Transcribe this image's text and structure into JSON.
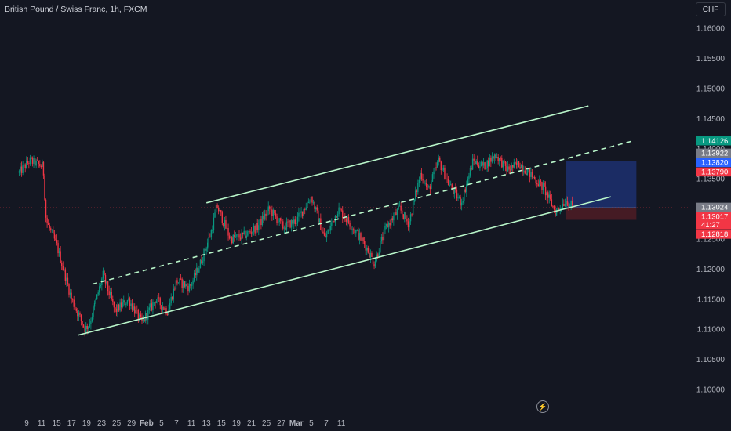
{
  "header": {
    "title": "British Pound / Swiss Franc, 1h, FXCM",
    "currency_button": "CHF"
  },
  "chart_data": {
    "type": "candlestick",
    "title": "British Pound / Swiss Franc, 1h, FXCM",
    "ylim": [
      1.0975,
      1.1625
    ],
    "y_ticks": [
      "1.16000",
      "1.15500",
      "1.15000",
      "1.14500",
      "1.14000",
      "1.13500",
      "1.13000",
      "1.12500",
      "1.12000",
      "1.11500",
      "1.11000",
      "1.10500",
      "1.10000"
    ],
    "x_ticks": [
      "9",
      "11",
      "15",
      "17",
      "19",
      "23",
      "25",
      "29",
      "Feb",
      "5",
      "7",
      "11",
      "13",
      "15",
      "19",
      "21",
      "25",
      "27",
      "Mar",
      "5",
      "7",
      "11"
    ],
    "price_path": [
      [
        -0.5,
        1.136
      ],
      [
        0.2,
        1.138
      ],
      [
        1.1,
        1.137
      ],
      [
        1.3,
        1.128
      ],
      [
        2.0,
        1.124
      ],
      [
        3.0,
        1.115
      ],
      [
        3.9,
        1.11
      ],
      [
        4.2,
        1.111
      ],
      [
        5.1,
        1.119
      ],
      [
        5.9,
        1.113
      ],
      [
        6.8,
        1.115
      ],
      [
        7.7,
        1.111
      ],
      [
        8.6,
        1.115
      ],
      [
        9.4,
        1.113
      ],
      [
        10.0,
        1.118
      ],
      [
        10.9,
        1.117
      ],
      [
        11.6,
        1.121
      ],
      [
        12.3,
        1.126
      ],
      [
        12.7,
        1.1305
      ],
      [
        13.6,
        1.125
      ],
      [
        14.5,
        1.1255
      ],
      [
        15.4,
        1.127
      ],
      [
        16.2,
        1.13
      ],
      [
        17.1,
        1.127
      ],
      [
        18.0,
        1.128
      ],
      [
        19.0,
        1.132
      ],
      [
        19.9,
        1.125
      ],
      [
        20.8,
        1.13
      ],
      [
        21.6,
        1.1275
      ],
      [
        22.6,
        1.124
      ],
      [
        23.2,
        1.121
      ],
      [
        24.0,
        1.127
      ],
      [
        24.9,
        1.13
      ],
      [
        25.5,
        1.1275
      ],
      [
        26.3,
        1.136
      ],
      [
        26.8,
        1.133
      ],
      [
        27.5,
        1.138
      ],
      [
        28.2,
        1.134
      ],
      [
        29.0,
        1.131
      ],
      [
        29.8,
        1.138
      ],
      [
        30.5,
        1.137
      ],
      [
        31.3,
        1.139
      ],
      [
        32.1,
        1.1365
      ],
      [
        32.9,
        1.1375
      ],
      [
        33.7,
        1.1355
      ],
      [
        34.5,
        1.1335
      ],
      [
        35.3,
        1.1295
      ],
      [
        36.0,
        1.1315
      ],
      [
        36.5,
        1.13
      ]
    ],
    "channel": {
      "upper_line": [
        [
          12.0,
          1.131
        ],
        [
          37.5,
          1.1471
        ]
      ],
      "lower_line": [
        [
          3.4,
          1.109
        ],
        [
          39.0,
          1.132
        ]
      ],
      "middle_dashed_line": [
        [
          4.4,
          1.1175
        ],
        [
          40.5,
          1.1413
        ]
      ]
    },
    "position": {
      "type": "long",
      "entry": 1.13017,
      "target": 1.1379,
      "stop": 1.12818,
      "x_range": [
        36.0,
        40.7
      ]
    },
    "current_price_line": 1.13017,
    "price_labels": [
      {
        "value": "1.14126",
        "price": 1.14126,
        "color": "#089981"
      },
      {
        "value": "1.13922",
        "price": 1.13922,
        "color": "#787b86"
      },
      {
        "value": "1.13820",
        "price": 1.1382,
        "color": "#2962ff"
      },
      {
        "value": "1.13790",
        "price": 1.1379,
        "color": "#f23645"
      },
      {
        "value": "1.13024",
        "price": 1.13024,
        "color": "#787b86"
      },
      {
        "value": "1.13017",
        "sub": "41:27",
        "price": 1.13017,
        "color": "#f23645"
      },
      {
        "value": "1.12818",
        "price": 1.12818,
        "color": "#f23645"
      }
    ],
    "colors": {
      "background": "#141722",
      "up_candle": "#089981",
      "down_candle": "#f23645",
      "channel_line": "#b9f6ca",
      "target_zone": "#1c2f6b",
      "stop_zone": "#4a1c25",
      "axis_text": "#b2b5be"
    }
  }
}
